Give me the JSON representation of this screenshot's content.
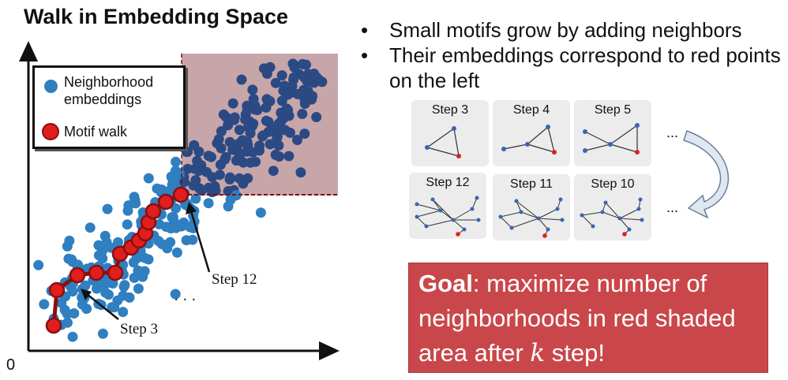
{
  "title": "Walk in Embedding Space",
  "origin_label": "0",
  "legend": {
    "neighborhood_label_line1": "Neighborhood",
    "neighborhood_label_line2": "embeddings",
    "motif_label": "Motif walk"
  },
  "annotations": {
    "step3": "Step 3",
    "step12": "Step 12",
    "dots": "· · ·"
  },
  "colors": {
    "neighborhood_point": "#2f7fc1",
    "shaded_point": "#2b4a84",
    "motif_point": "#e01e1e",
    "motif_line": "#8b0f0f",
    "shaded_area": "#c7a6a9",
    "goal_box": "#c9474a"
  },
  "bullets": [
    "Small motifs grow by adding neighbors",
    "Their embeddings correspond to red points on the left"
  ],
  "step_cards_top": [
    "Step 3",
    "Step 4",
    "Step 5"
  ],
  "step_cards_bottom": [
    "Step 12",
    "Step 11",
    "Step 10"
  ],
  "ellipsis": "...",
  "goal": {
    "keyword": "Goal",
    "text_before_k": ": maximize number of neighborhoods in red shaded area after ",
    "k": "k",
    "text_after_k": " step!"
  }
}
